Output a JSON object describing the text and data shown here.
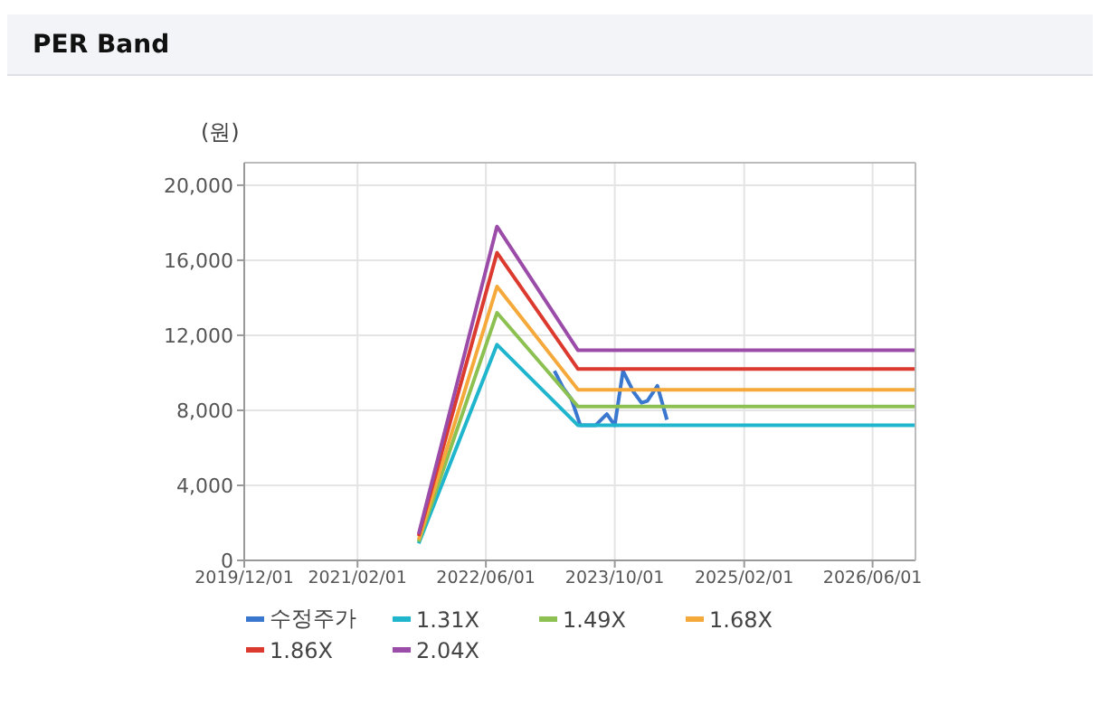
{
  "chart_data": {
    "type": "line",
    "title": "PER Band",
    "ylabel": "(원)",
    "xlim": [
      "2019-12-01",
      "2026-11-10"
    ],
    "xticks": [
      {
        "value": "2019-12-01",
        "label": "2019/12/01"
      },
      {
        "value": "2021-02-01",
        "label": "2021/02/01"
      },
      {
        "value": "2022-06-01",
        "label": "2022/06/01"
      },
      {
        "value": "2023-10-01",
        "label": "2023/10/01"
      },
      {
        "value": "2025-02-01",
        "label": "2025/02/01"
      },
      {
        "value": "2026-06-01",
        "label": "2026/06/01"
      }
    ],
    "ylim": [
      0,
      21200
    ],
    "yticks": [
      {
        "value": 0,
        "label": "0"
      },
      {
        "value": 4000,
        "label": "4,000"
      },
      {
        "value": 8000,
        "label": "8,000"
      },
      {
        "value": 12000,
        "label": "12,000"
      },
      {
        "value": 16000,
        "label": "16,000"
      },
      {
        "value": 20000,
        "label": "20,000"
      }
    ],
    "series": [
      {
        "name": "수정주가",
        "color": "#3a78d0",
        "x": [
          "2023-02-15",
          "2023-03-20",
          "2023-04-20",
          "2023-05-24",
          "2023-07-20",
          "2023-09-01",
          "2023-10-01",
          "2023-11-01",
          "2023-12-10",
          "2024-01-10",
          "2024-02-01",
          "2024-03-10",
          "2024-04-15"
        ],
        "values": [
          10100,
          9200,
          8600,
          7200,
          7200,
          7800,
          7200,
          10100,
          9000,
          8400,
          8500,
          9300,
          7500
        ]
      },
      {
        "name": "1.31X",
        "color": "#1fb5cc",
        "x": [
          "2021-09-20",
          "2022-07-13",
          "2023-05-15",
          "2026-11-10"
        ],
        "values": [
          900,
          11500,
          7200,
          7200
        ]
      },
      {
        "name": "1.49X",
        "color": "#8cc152",
        "x": [
          "2021-09-20",
          "2022-07-13",
          "2023-05-15",
          "2026-11-10"
        ],
        "values": [
          1000,
          13200,
          8200,
          8200
        ]
      },
      {
        "name": "1.68X",
        "color": "#f5a93a",
        "x": [
          "2021-09-20",
          "2022-07-13",
          "2023-05-15",
          "2026-11-10"
        ],
        "values": [
          1100,
          14600,
          9100,
          9100
        ]
      },
      {
        "name": "1.86X",
        "color": "#dc3a2e",
        "x": [
          "2021-09-20",
          "2022-07-13",
          "2023-05-15",
          "2026-11-10"
        ],
        "values": [
          1300,
          16400,
          10200,
          10200
        ]
      },
      {
        "name": "2.04X",
        "color": "#9b4ca8",
        "x": [
          "2021-09-20",
          "2022-07-13",
          "2023-05-15",
          "2026-11-10"
        ],
        "values": [
          1400,
          17800,
          11200,
          11200
        ]
      }
    ],
    "grid": true,
    "legend": "bottom",
    "marker": "none",
    "line_style": "solid"
  }
}
